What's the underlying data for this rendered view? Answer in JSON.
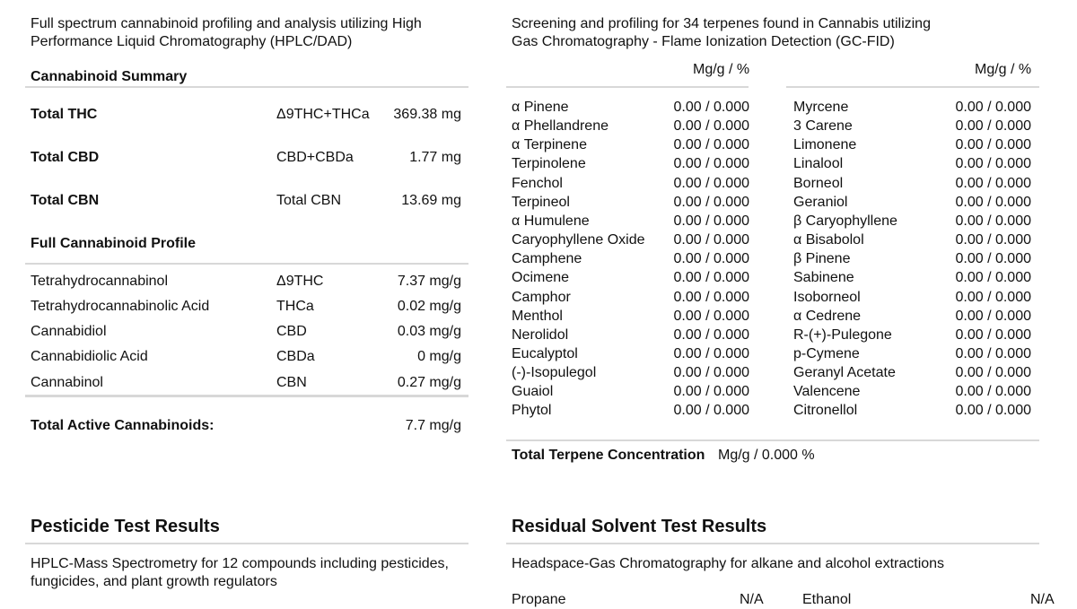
{
  "cannabinoid": {
    "description": "Full spectrum cannabinoid profiling and analysis utilizing High Performance Liquid Chromatography (HPLC/DAD)",
    "summary_title": "Cannabinoid Summary",
    "summary": [
      {
        "name": "Total THC",
        "formula": "Δ9THC+THCa",
        "value": "369.38 mg"
      },
      {
        "name": "Total CBD",
        "formula": "CBD+CBDa",
        "value": "1.77 mg"
      },
      {
        "name": "Total CBN",
        "formula": "Total CBN",
        "value": "13.69 mg"
      }
    ],
    "profile_title": "Full Cannabinoid Profile",
    "profile": [
      {
        "name": "Tetrahydrocannabinol",
        "abbr": "Δ9THC",
        "value": "7.37 mg/g"
      },
      {
        "name": "Tetrahydrocannabinolic Acid",
        "abbr": "THCa",
        "value": "0.02 mg/g"
      },
      {
        "name": "Cannabidiol",
        "abbr": "CBD",
        "value": "0.03 mg/g"
      },
      {
        "name": "Cannabidiolic Acid",
        "abbr": "CBDa",
        "value": "0 mg/g"
      },
      {
        "name": "Cannabinol",
        "abbr": "CBN",
        "value": "0.27 mg/g"
      }
    ],
    "total_label": "Total Active Cannabinoids:",
    "total_value": "7.7 mg/g"
  },
  "terpene": {
    "description": "Screening and profiling for 34 terpenes found in Cannabis utilizing Gas Chromatography - Flame Ionization Detection (GC-FID)",
    "unit_header": "Mg/g / %",
    "left": [
      {
        "name": "α Pinene",
        "value": "0.00 / 0.000"
      },
      {
        "name": "α Phellandrene",
        "value": "0.00 / 0.000"
      },
      {
        "name": "α Terpinene",
        "value": "0.00 / 0.000"
      },
      {
        "name": "Terpinolene",
        "value": "0.00 / 0.000"
      },
      {
        "name": "Fenchol",
        "value": "0.00 / 0.000"
      },
      {
        "name": "Terpineol",
        "value": "0.00 / 0.000"
      },
      {
        "name": "α Humulene",
        "value": "0.00 / 0.000"
      },
      {
        "name": "Caryophyllene Oxide",
        "value": "0.00 / 0.000"
      },
      {
        "name": "Camphene",
        "value": "0.00 / 0.000"
      },
      {
        "name": "Ocimene",
        "value": "0.00 / 0.000"
      },
      {
        "name": "Camphor",
        "value": "0.00 / 0.000"
      },
      {
        "name": "Menthol",
        "value": "0.00 / 0.000"
      },
      {
        "name": "Nerolidol",
        "value": "0.00 / 0.000"
      },
      {
        "name": "Eucalyptol",
        "value": "0.00 / 0.000"
      },
      {
        "name": "(-)-Isopulegol",
        "value": "0.00 / 0.000"
      },
      {
        "name": "Guaiol",
        "value": "0.00 / 0.000"
      },
      {
        "name": "Phytol",
        "value": "0.00 / 0.000"
      }
    ],
    "right": [
      {
        "name": "Myrcene",
        "value": "0.00 / 0.000"
      },
      {
        "name": "3 Carene",
        "value": "0.00 / 0.000"
      },
      {
        "name": "Limonene",
        "value": "0.00 / 0.000"
      },
      {
        "name": "Linalool",
        "value": "0.00 / 0.000"
      },
      {
        "name": "Borneol",
        "value": "0.00 / 0.000"
      },
      {
        "name": "Geraniol",
        "value": "0.00 / 0.000"
      },
      {
        "name": "β Caryophyllene",
        "value": "0.00 / 0.000"
      },
      {
        "name": "α Bisabolol",
        "value": "0.00 / 0.000"
      },
      {
        "name": "β Pinene",
        "value": "0.00 / 0.000"
      },
      {
        "name": "Sabinene",
        "value": "0.00 / 0.000"
      },
      {
        "name": "Isoborneol",
        "value": "0.00 / 0.000"
      },
      {
        "name": "α Cedrene",
        "value": "0.00 / 0.000"
      },
      {
        "name": "R-(+)-Pulegone",
        "value": "0.00 / 0.000"
      },
      {
        "name": "p-Cymene",
        "value": "0.00 / 0.000"
      },
      {
        "name": "Geranyl Acetate",
        "value": "0.00 / 0.000"
      },
      {
        "name": "Valencene",
        "value": "0.00 / 0.000"
      },
      {
        "name": "Citronellol",
        "value": "0.00 / 0.000"
      }
    ],
    "total_label": "Total Terpene Concentration",
    "total_value": "Mg/g / 0.000 %"
  },
  "pesticide": {
    "title": "Pesticide Test Results",
    "description": "HPLC-Mass Spectrometry for 12 compounds including pesticides, fungicides, and plant growth regulators"
  },
  "solvent": {
    "title": "Residual Solvent Test Results",
    "description": "Headspace-Gas Chromatography for alkane and alcohol extractions",
    "rows": [
      {
        "name": "Propane",
        "value": "N/A",
        "name2": "Ethanol",
        "value2": "N/A"
      }
    ]
  }
}
